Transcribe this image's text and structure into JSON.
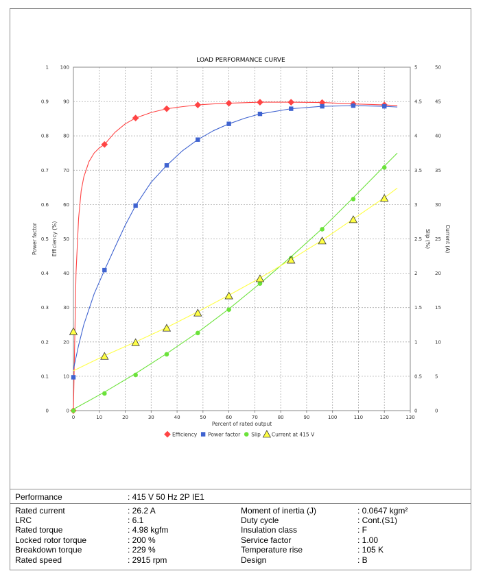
{
  "chart_data": {
    "type": "line",
    "title": "LOAD PERFORMANCE CURVE",
    "xlabel": "Percent of rated output",
    "xlim": [
      0,
      130
    ],
    "x_ticks": [
      "0",
      "10",
      "20",
      "30",
      "40",
      "50",
      "60",
      "70",
      "80",
      "90",
      "100",
      "110",
      "120",
      "130"
    ],
    "axes": {
      "power_factor": {
        "label": "Power factor",
        "ticks": [
          "0",
          "0.1",
          "0.2",
          "0.3",
          "0.4",
          "0.5",
          "0.6",
          "0.7",
          "0.8",
          "0.9",
          "1"
        ],
        "lim": [
          0,
          1
        ]
      },
      "efficiency": {
        "label": "Efficiency (%)",
        "ticks": [
          "0",
          "10",
          "20",
          "30",
          "40",
          "50",
          "60",
          "70",
          "80",
          "90",
          "100"
        ],
        "lim": [
          0,
          100
        ]
      },
      "slip": {
        "label": "Slip (%)",
        "ticks": [
          "0",
          "0.5",
          "1",
          "1.5",
          "2",
          "2.5",
          "3",
          "3.5",
          "4",
          "4.5",
          "5"
        ],
        "lim": [
          0,
          5
        ]
      },
      "current": {
        "label": "Current (A)",
        "ticks": [
          "0",
          "5",
          "10",
          "15",
          "20",
          "25",
          "30",
          "35",
          "40",
          "45",
          "50"
        ],
        "lim": [
          0,
          50
        ]
      }
    },
    "grid": true,
    "legend_position": "bottom",
    "series": [
      {
        "name": "Efficiency",
        "axis": "efficiency",
        "color": "#ff4444",
        "marker": "diamond",
        "x": [
          0,
          12,
          24,
          36,
          48,
          60,
          72,
          84,
          96,
          108,
          120
        ],
        "y": [
          0,
          77.5,
          85.2,
          87.9,
          89.0,
          89.5,
          89.8,
          89.8,
          89.7,
          89.3,
          89.0
        ],
        "curve_x": [
          0,
          1,
          2,
          3,
          4,
          6,
          8,
          10,
          12,
          16,
          20,
          24,
          30,
          36,
          42,
          48,
          54,
          60,
          72,
          84,
          96,
          108,
          120,
          125
        ],
        "curve_y": [
          0,
          40,
          56,
          64,
          68,
          72.5,
          75,
          76.5,
          77.5,
          81,
          83.5,
          85.2,
          86.8,
          87.9,
          88.5,
          89.0,
          89.3,
          89.5,
          89.8,
          89.8,
          89.7,
          89.3,
          89.0,
          88.8
        ]
      },
      {
        "name": "Power factor",
        "axis": "power_factor",
        "color": "#3f63d0",
        "marker": "square",
        "x": [
          0,
          12,
          24,
          36,
          48,
          60,
          72,
          84,
          96,
          108,
          120
        ],
        "y": [
          0.097,
          0.409,
          0.597,
          0.714,
          0.789,
          0.835,
          0.864,
          0.879,
          0.886,
          0.888,
          0.886
        ],
        "curve_x": [
          0,
          2,
          4,
          8,
          12,
          16,
          20,
          24,
          30,
          36,
          42,
          48,
          54,
          60,
          66,
          72,
          84,
          96,
          108,
          120,
          125
        ],
        "curve_y": [
          0.12,
          0.19,
          0.25,
          0.34,
          0.409,
          0.475,
          0.54,
          0.597,
          0.665,
          0.714,
          0.756,
          0.789,
          0.815,
          0.835,
          0.851,
          0.864,
          0.879,
          0.886,
          0.888,
          0.886,
          0.884
        ]
      },
      {
        "name": "Slip",
        "axis": "slip",
        "color": "#6be23a",
        "marker": "circle",
        "x": [
          0,
          12,
          24,
          36,
          48,
          60,
          72,
          84,
          96,
          108,
          120
        ],
        "y": [
          0.0,
          0.25,
          0.52,
          0.82,
          1.13,
          1.47,
          1.85,
          2.22,
          2.64,
          3.08,
          3.54
        ],
        "curve_x": [
          0,
          12,
          24,
          36,
          48,
          60,
          72,
          84,
          96,
          108,
          120,
          125
        ],
        "curve_y": [
          0.02,
          0.27,
          0.54,
          0.83,
          1.14,
          1.48,
          1.85,
          2.24,
          2.65,
          3.1,
          3.56,
          3.75
        ]
      },
      {
        "name": "Current at 415 V",
        "axis": "current",
        "color": "#ffff44",
        "marker": "triangle",
        "x": [
          0,
          12,
          24,
          36,
          48,
          60,
          72,
          84,
          96,
          108,
          120
        ],
        "y": [
          11.5,
          7.9,
          9.9,
          12.0,
          14.2,
          16.7,
          19.2,
          21.9,
          24.7,
          27.8,
          30.9
        ],
        "curve_x": [
          0,
          12,
          24,
          36,
          48,
          60,
          72,
          84,
          96,
          108,
          120,
          125
        ],
        "curve_y": [
          5.8,
          8.0,
          10.0,
          12.1,
          14.4,
          16.8,
          19.3,
          22.0,
          24.8,
          27.9,
          31.0,
          32.4
        ]
      }
    ]
  },
  "specs": {
    "performance_label": "Performance",
    "performance_value": ": 415 V 50 Hz 2P IE1",
    "left": [
      {
        "label": "Rated current",
        "value": ": 26.2 A"
      },
      {
        "label": "LRC",
        "value": ": 6.1"
      },
      {
        "label": "Rated torque",
        "value": ": 4.98 kgfm"
      },
      {
        "label": "Locked rotor torque",
        "value": ": 200 %"
      },
      {
        "label": "Breakdown torque",
        "value": ": 229 %"
      },
      {
        "label": "Rated speed",
        "value": ": 2915 rpm"
      }
    ],
    "right": [
      {
        "label": "Moment of inertia (J)",
        "value": ": 0.0647 kgm²"
      },
      {
        "label": "Duty cycle",
        "value": ": Cont.(S1)"
      },
      {
        "label": "Insulation class",
        "value": ": F"
      },
      {
        "label": "Service factor",
        "value": ": 1.00"
      },
      {
        "label": "Temperature rise",
        "value": ": 105 K"
      },
      {
        "label": "Design",
        "value": ": B"
      }
    ]
  }
}
